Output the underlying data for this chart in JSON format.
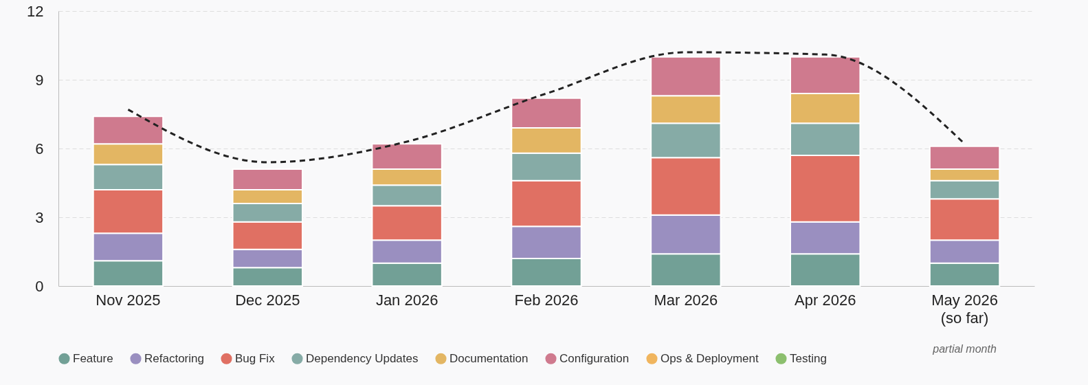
{
  "chart_data": {
    "type": "bar",
    "stacked": true,
    "categories": [
      "Nov 2025",
      "Dec 2025",
      "Jan 2026",
      "Feb 2026",
      "Mar 2026",
      "Apr 2026",
      "May 2026\n(so far)"
    ],
    "ylim": [
      0,
      12
    ],
    "yticks": [
      0,
      3,
      6,
      9,
      12
    ],
    "grid": "y",
    "legend": "bottom",
    "series": [
      {
        "name": "Feature",
        "color": "#72a096",
        "values": [
          1.1,
          0.8,
          1.0,
          1.2,
          1.4,
          1.4,
          1.0
        ]
      },
      {
        "name": "Refactoring",
        "color": "#9a8fc0",
        "values": [
          1.2,
          0.8,
          1.0,
          1.4,
          1.7,
          1.4,
          1.0
        ]
      },
      {
        "name": "Bug Fix",
        "color": "#e07063",
        "values": [
          1.9,
          1.2,
          1.5,
          2.0,
          2.5,
          2.9,
          1.8
        ]
      },
      {
        "name": "Dependency Updates",
        "color": "#86aba6",
        "values": [
          1.1,
          0.8,
          0.9,
          1.2,
          1.5,
          1.4,
          0.8
        ]
      },
      {
        "name": "Documentation",
        "color": "#e3b663",
        "values": [
          0.9,
          0.6,
          0.7,
          1.1,
          1.2,
          1.3,
          0.5
        ]
      },
      {
        "name": "Configuration",
        "color": "#cf7a8e",
        "values": [
          1.2,
          0.9,
          1.1,
          1.3,
          1.7,
          1.6,
          1.0
        ]
      },
      {
        "name": "Ops & Deployment",
        "color": "#f0b55e",
        "values": [
          null,
          null,
          null,
          null,
          null,
          null,
          null
        ]
      },
      {
        "name": "Testing",
        "color": "#8cbf6e",
        "values": [
          null,
          null,
          null,
          null,
          null,
          null,
          null
        ]
      },
      {
        "type": "line",
        "color": "#222222",
        "line_style": "dashed",
        "values": [
          7.7,
          5.4,
          6.3,
          8.4,
          10.2,
          10.1,
          6.2
        ]
      }
    ],
    "annotations": [
      "partial month"
    ]
  }
}
